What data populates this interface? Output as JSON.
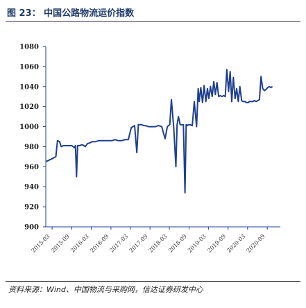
{
  "figure": {
    "title": "图 23： 中国公路物流运价指数",
    "source": "资料来源：Wind、中国物流与采购网，信达证券研发中心"
  },
  "chart_data": {
    "type": "line",
    "title": "",
    "xlabel": "",
    "ylabel": "",
    "ylim": [
      900,
      1080
    ],
    "yticks": [
      900,
      920,
      940,
      960,
      980,
      1000,
      1020,
      1040,
      1060,
      1080
    ],
    "xlim": [
      "2015-01-01",
      "2021-01-01"
    ],
    "xticks": [
      "2015-03",
      "2015-09",
      "2016-03",
      "2016-09",
      "2017-03",
      "2017-09",
      "2018-03",
      "2018-09",
      "2019-03",
      "2019-09",
      "2020-03",
      "2020-09"
    ],
    "grid": false,
    "legend": "none",
    "colors": {
      "line": "#1f3f8f",
      "axis": "#1f3f8f"
    },
    "series": [
      {
        "name": "",
        "x": [
          "2015-01-01",
          "2015-01-20",
          "2015-03-01",
          "2015-04-05",
          "2015-04-20",
          "2015-05-10",
          "2015-05-25",
          "2015-06-15",
          "2015-07-10",
          "2015-08-10",
          "2015-09-01",
          "2015-09-25",
          "2015-10-05",
          "2015-10-15",
          "2015-10-25",
          "2015-11-10",
          "2015-12-10",
          "2016-01-05",
          "2016-01-25",
          "2016-02-20",
          "2016-03-10",
          "2016-04-10",
          "2016-05-10",
          "2016-06-10",
          "2016-07-10",
          "2016-08-10",
          "2016-09-10",
          "2016-10-10",
          "2016-11-10",
          "2016-12-10",
          "2017-01-10",
          "2017-02-10",
          "2017-03-10",
          "2017-04-10",
          "2017-05-01",
          "2017-05-15",
          "2017-06-15",
          "2017-07-05",
          "2017-07-20",
          "2017-08-20",
          "2017-09-20",
          "2017-10-20",
          "2017-11-20",
          "2017-12-20",
          "2018-01-20",
          "2018-02-10",
          "2018-02-20",
          "2018-03-05",
          "2018-03-20",
          "2018-04-10",
          "2018-05-01",
          "2018-05-12",
          "2018-05-25",
          "2018-06-10",
          "2018-07-10",
          "2018-07-25",
          "2018-08-05",
          "2018-08-15",
          "2018-08-25",
          "2018-09-10",
          "2018-10-01",
          "2018-10-20",
          "2018-11-10",
          "2018-11-25",
          "2018-12-05",
          "2018-12-20",
          "2019-01-05",
          "2019-01-20",
          "2019-02-05",
          "2019-02-20",
          "2019-03-05",
          "2019-03-20",
          "2019-04-05",
          "2019-04-20",
          "2019-05-05",
          "2019-05-20",
          "2019-06-05",
          "2019-06-20",
          "2019-07-05",
          "2019-07-20",
          "2019-08-05",
          "2019-08-20",
          "2019-09-05",
          "2019-09-20",
          "2019-10-05",
          "2019-10-20",
          "2019-11-05",
          "2019-11-20",
          "2019-12-05",
          "2019-12-20",
          "2020-01-05",
          "2020-01-20",
          "2020-02-05",
          "2020-02-20",
          "2020-03-05",
          "2020-03-20",
          "2020-04-05",
          "2020-04-20",
          "2020-05-05",
          "2020-05-20",
          "2020-06-05",
          "2020-06-20",
          "2020-07-05",
          "2020-07-20",
          "2020-08-05",
          "2020-08-20",
          "2020-09-05",
          "2020-09-20",
          "2020-10-05",
          "2020-10-20"
        ],
        "values": [
          965,
          966,
          968,
          970,
          986,
          985,
          980,
          981,
          981,
          981,
          981,
          979,
          981,
          950,
          981,
          981,
          982,
          980,
          983,
          984,
          985,
          985,
          986,
          986,
          986,
          986,
          986,
          987,
          986,
          986,
          987,
          987,
          999,
          1001,
          974,
          1002,
          1002,
          1001,
          1001,
          1000,
          1000,
          1000,
          1001,
          1000,
          988,
          1000,
          1001,
          1002,
          1027,
          1000,
          960,
          1002,
          1010,
          1002,
          1002,
          934,
          1002,
          1001,
          1002,
          1002,
          1001,
          1025,
          1000,
          1038,
          1025,
          1039,
          1024,
          1041,
          1025,
          1038,
          1028,
          1040,
          1030,
          1045,
          1032,
          1044,
          1030,
          1031,
          1030,
          1031,
          1030,
          1057,
          1035,
          1055,
          1025,
          1049,
          1028,
          1038,
          1025,
          1040,
          1026,
          1025,
          1025,
          1024,
          1024,
          1025,
          1025,
          1025,
          1026,
          1025,
          1026,
          1027,
          1050,
          1038,
          1036,
          1037,
          1039,
          1040,
          1039,
          1040
        ]
      }
    ]
  }
}
